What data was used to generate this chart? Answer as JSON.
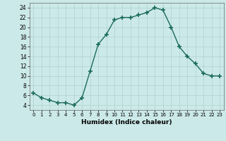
{
  "x": [
    0,
    1,
    2,
    3,
    4,
    5,
    6,
    7,
    8,
    9,
    10,
    11,
    12,
    13,
    14,
    15,
    16,
    17,
    18,
    19,
    20,
    21,
    22,
    23
  ],
  "y": [
    6.5,
    5.5,
    5.0,
    4.5,
    4.5,
    4.0,
    5.5,
    11.0,
    16.5,
    18.5,
    21.5,
    22.0,
    22.0,
    22.5,
    23.0,
    24.0,
    23.5,
    20.0,
    16.0,
    14.0,
    12.5,
    10.5,
    10.0,
    10.0
  ],
  "line_color": "#1a6b5a",
  "marker": "+",
  "marker_size": 4,
  "marker_linewidth": 1.2,
  "xlabel": "Humidex (Indice chaleur)",
  "xlim": [
    -0.5,
    23.5
  ],
  "ylim": [
    3,
    25
  ],
  "yticks": [
    4,
    6,
    8,
    10,
    12,
    14,
    16,
    18,
    20,
    22,
    24
  ],
  "xticks": [
    0,
    1,
    2,
    3,
    4,
    5,
    6,
    7,
    8,
    9,
    10,
    11,
    12,
    13,
    14,
    15,
    16,
    17,
    18,
    19,
    20,
    21,
    22,
    23
  ],
  "background_color": "#cce9e9",
  "grid_color": "#b0d0d0",
  "grid_linewidth": 0.5
}
